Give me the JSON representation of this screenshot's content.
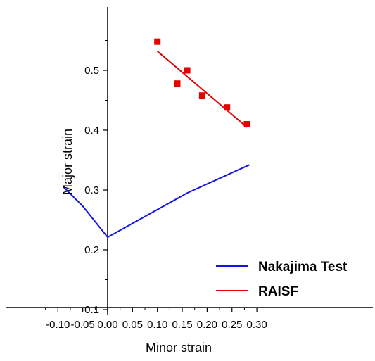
{
  "chart_data": {
    "type": "scatter",
    "xlabel": "Minor strain",
    "ylabel": "Major strain",
    "xlim": [
      -0.11,
      0.31
    ],
    "ylim": [
      0.05,
      0.6
    ],
    "xticks": [
      "-0.10",
      "-0.05",
      "0.00",
      "0.05",
      "0.10",
      "0.15",
      "0.20",
      "0.25",
      "0.30"
    ],
    "xtick_values": [
      -0.1,
      -0.05,
      0.0,
      0.05,
      0.1,
      0.15,
      0.2,
      0.25,
      0.3
    ],
    "yticks": [
      "0.1",
      "0.2",
      "0.3",
      "0.4",
      "0.5"
    ],
    "ytick_values": [
      0.1,
      0.2,
      0.3,
      0.4,
      0.5
    ],
    "grid": false,
    "legend_position": "bottom-right",
    "colors": {
      "nakajima": "#1414e6",
      "raisf": "#e60000"
    },
    "series": [
      {
        "name": "Nakajima Test",
        "kind": "line",
        "x": [
          -0.09,
          -0.05,
          0.0,
          0.16,
          0.285
        ],
        "y": [
          0.306,
          0.273,
          0.221,
          0.295,
          0.342
        ]
      },
      {
        "name": "RAISF",
        "kind": "points",
        "x": [
          0.1,
          0.14,
          0.16,
          0.19,
          0.24,
          0.28
        ],
        "y": [
          0.548,
          0.478,
          0.5,
          0.458,
          0.438,
          0.41
        ]
      },
      {
        "name": "RAISF",
        "kind": "fit",
        "x": [
          0.1,
          0.28
        ],
        "y": [
          0.532,
          0.405
        ]
      }
    ]
  }
}
